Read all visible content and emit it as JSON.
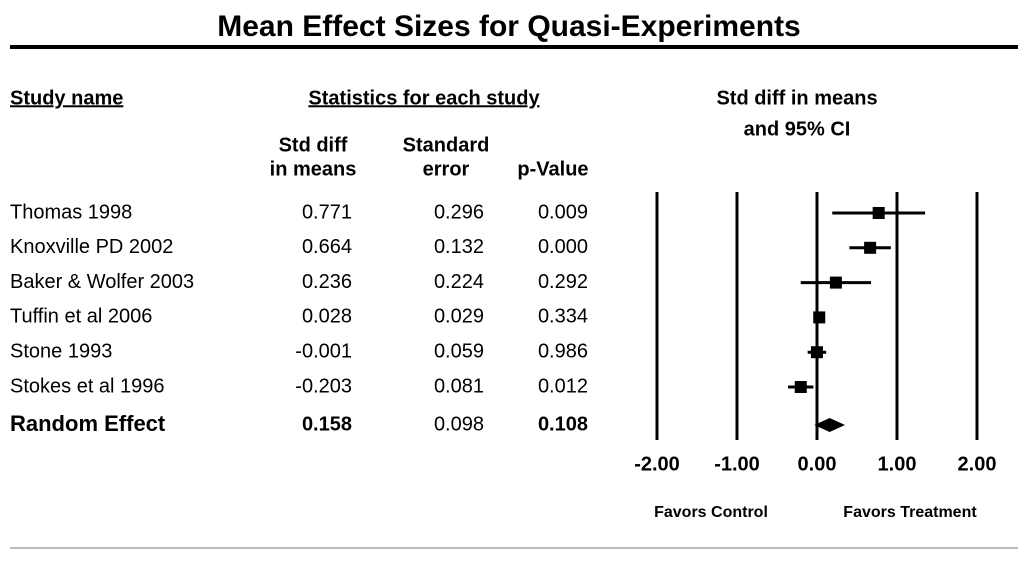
{
  "chart_data": {
    "type": "forest",
    "title": "Mean Effect Sizes for Quasi-Experiments",
    "name_header": "Study name",
    "stats_header": "Statistics for each study",
    "plot_header": [
      "Std diff in means",
      "and 95% CI"
    ],
    "column_headers": [
      [
        "Std diff",
        "in means"
      ],
      [
        "Standard",
        "error"
      ],
      [
        "p-Value"
      ]
    ],
    "categories": [
      "Thomas 1998",
      "Knoxville PD 2002",
      "Baker & Wolfer 2003",
      "Tuffin et al 2006",
      "Stone 1993",
      "Stokes et al 1996",
      "Random Effect"
    ],
    "values": [
      0.771,
      0.664,
      0.236,
      0.028,
      -0.001,
      -0.203,
      0.158
    ],
    "errors": [
      0.296,
      0.132,
      0.224,
      0.029,
      0.059,
      0.081,
      0.098
    ],
    "p_values": [
      "0.009",
      "0.000",
      "0.292",
      "0.334",
      "0.986",
      "0.012",
      "0.108"
    ],
    "xlim": [
      -2,
      2
    ],
    "xticks": [
      {
        "value": -2,
        "label": "-2.00"
      },
      {
        "value": -1,
        "label": "-1.00"
      },
      {
        "value": 0,
        "label": "0.00"
      },
      {
        "value": 1,
        "label": "1.00"
      },
      {
        "value": 2,
        "label": "2.00"
      }
    ],
    "x_annotations": [
      "Favors Control",
      "Favors Treatment"
    ],
    "color": "#000000"
  }
}
